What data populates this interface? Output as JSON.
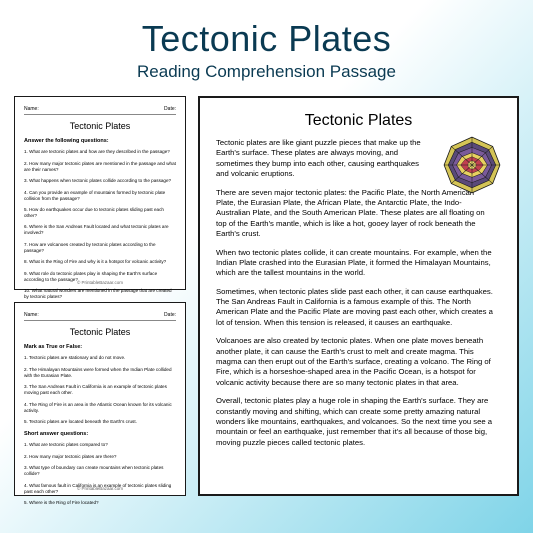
{
  "header": {
    "title": "Tectonic Plates",
    "subtitle": "Reading Comprehension Passage"
  },
  "sheet1": {
    "name_label": "Name:",
    "date_label": "Date:",
    "title": "Tectonic Plates",
    "instruction": "Answer the following questions:",
    "questions": [
      "1.   What are tectonic plates and how are they described in the passage?",
      "2.   How many major tectonic plates are mentioned in the passage and what are their names?",
      "3.   What happens when tectonic plates collide according to the passage?",
      "4.   Can you provide an example of mountains formed by tectonic plate collision from the passage?",
      "5.   How do earthquakes occur due to tectonic plates sliding past each other?",
      "6.   Where is the San Andreas Fault located and what tectonic plates are involved?",
      "7.   How are volcanoes created by tectonic plates according to the passage?",
      "8.   What is the Ring of Fire and why is it a hotspot for volcanic activity?",
      "9.   What role do tectonic plates play in shaping the Earth's surface according to the passage?",
      "10.  What natural wonders are mentioned in the passage that are created by tectonic plates?"
    ],
    "footer": "© PrintableBazaar.com"
  },
  "sheet2": {
    "name_label": "Name:",
    "date_label": "Date:",
    "title": "Tectonic Plates",
    "section1": "Mark as True or False:",
    "tf_items": [
      "1.   Tectonic plates are stationary and do not move.",
      "2.   The Himalayan Mountains were formed when the Indian Plate collided with the Eurasian Plate.",
      "3.   The San Andreas Fault in California is an example of tectonic plates moving past each other.",
      "4.   The Ring of Fire is an area in the Atlantic Ocean known for its volcanic activity.",
      "5.   Tectonic plates are located beneath the Earth's crust."
    ],
    "section2": "Short answer questions:",
    "short_items": [
      "1.   What are tectonic plates compared to?",
      "2.   How many major tectonic plates are there?",
      "3.   What type of boundary can create mountains when tectonic plates collide?",
      "4.   What famous fault in California is an example of tectonic plates sliding past each other?",
      "5.   Where is the Ring of Fire located?"
    ],
    "footer": "© PrintableBazaar.com"
  },
  "passage": {
    "title": "Tectonic Plates",
    "paragraphs": [
      "Tectonic plates are like giant puzzle pieces that make up the Earth's surface. These plates are always moving, and sometimes they bump into each other, causing earthquakes and volcanic eruptions.",
      "There are seven major tectonic plates: the Pacific Plate, the North American Plate, the Eurasian Plate, the African Plate, the Antarctic Plate, the Indo-Australian Plate, and the South American Plate. These plates are all floating on top of the Earth's mantle, which is like a hot, gooey layer of rock beneath the Earth's crust.",
      "When two tectonic plates collide, it can create mountains. For example, when the Indian Plate crashed into the Eurasian Plate, it formed the Himalayan Mountains, which are the tallest mountains in the world.",
      "Sometimes, when tectonic plates slide past each other, it can cause earthquakes. The San Andreas Fault in California is a famous example of this. The North American Plate and the Pacific Plate are moving past each other, which creates a lot of tension. When this tension is released, it causes an earthquake.",
      "Volcanoes are also created by tectonic plates. When one plate moves beneath another plate, it can cause the Earth's crust to melt and create magma. This magma can then erupt out of the Earth's surface, creating a volcano. The Ring of Fire, which is a horseshoe-shaped area in the Pacific Ocean, is a hotspot for volcanic activity because there are so many tectonic plates in that area.",
      "Overall, tectonic plates play a huge role in shaping the Earth's surface. They are constantly moving and shifting, which can create some pretty amazing natural wonders like mountains, earthquakes, and volcanoes. So the next time you see a mountain or feel an earthquake, just remember that it's all because of those big, moving puzzle pieces called tectonic plates."
    ]
  },
  "diagram": {
    "colors": {
      "outer": "#d4c456",
      "mid1": "#4a4a6a",
      "mid2": "#6a4a8a",
      "inner1": "#e8d060",
      "inner2": "#c04050",
      "core": "#f0e070",
      "lines": "#1a1a1a"
    }
  }
}
